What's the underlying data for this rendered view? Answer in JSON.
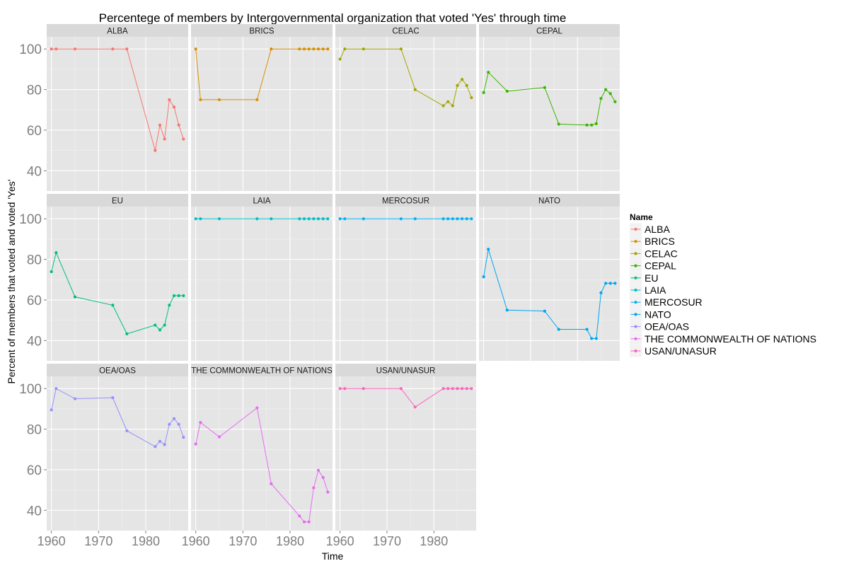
{
  "chart_data": {
    "type": "line",
    "title": "Percentege of members by Intergovernmental organization that voted 'Yes' through time",
    "xlabel": "Time",
    "ylabel": "Percent of members that voted and voted 'Yes'",
    "xlim": [
      1959,
      1989
    ],
    "ylim": [
      30,
      106
    ],
    "x_ticks": [
      1960,
      1970,
      1980
    ],
    "y_ticks": [
      40,
      60,
      80,
      100
    ],
    "grid": true,
    "legend": {
      "title": "Name",
      "position": "right"
    },
    "panels": [
      {
        "name": "ALBA",
        "color": "#F8766D",
        "x": [
          1960,
          1961,
          1965,
          1973,
          1976,
          1982,
          1983,
          1984,
          1985,
          1986,
          1987,
          1988
        ],
        "y": [
          100,
          100,
          100,
          100,
          100,
          50,
          62.5,
          55.6,
          75,
          71.4,
          62.5,
          55.6
        ]
      },
      {
        "name": "BRICS",
        "color": "#D89000",
        "x": [
          1960,
          1961,
          1965,
          1973,
          1976,
          1982,
          1983,
          1984,
          1985,
          1986,
          1987,
          1988
        ],
        "y": [
          100,
          75,
          75,
          75,
          100,
          100,
          100,
          100,
          100,
          100,
          100,
          100
        ]
      },
      {
        "name": "CELAC",
        "color": "#A3A500",
        "x": [
          1960,
          1961,
          1965,
          1973,
          1976,
          1982,
          1983,
          1984,
          1985,
          1986,
          1987,
          1988
        ],
        "y": [
          95,
          100,
          100,
          100,
          80,
          72,
          74,
          72,
          82,
          85,
          82,
          76
        ]
      },
      {
        "name": "CEPAL",
        "color": "#39B600",
        "x": [
          1960,
          1961,
          1965,
          1973,
          1976,
          1982,
          1983,
          1984,
          1985,
          1986,
          1987,
          1988
        ],
        "y": [
          78.5,
          88.5,
          79.2,
          81,
          63,
          62.5,
          62.5,
          63.2,
          75.6,
          80,
          78,
          74
        ]
      },
      {
        "name": "EU",
        "color": "#00BF7D",
        "x": [
          1960,
          1961,
          1965,
          1973,
          1976,
          1982,
          1983,
          1984,
          1985,
          1986,
          1987,
          1988
        ],
        "y": [
          73.9,
          83.3,
          61.5,
          57.4,
          43.3,
          47.6,
          45.2,
          47.6,
          57.4,
          62.1,
          62.1,
          62.1
        ]
      },
      {
        "name": "LAIA",
        "color": "#00BFC4",
        "x": [
          1960,
          1961,
          1965,
          1973,
          1976,
          1982,
          1983,
          1984,
          1985,
          1986,
          1987,
          1988
        ],
        "y": [
          100,
          100,
          100,
          100,
          100,
          100,
          100,
          100,
          100,
          100,
          100,
          100
        ]
      },
      {
        "name": "MERCOSUR",
        "color": "#00B0F6",
        "x": [
          1960,
          1961,
          1965,
          1973,
          1976,
          1982,
          1983,
          1984,
          1985,
          1986,
          1987,
          1988
        ],
        "y": [
          100,
          100,
          100,
          100,
          100,
          100,
          100,
          100,
          100,
          100,
          100,
          100
        ]
      },
      {
        "name": "NATO",
        "color": "#00A5F0",
        "x": [
          1960,
          1961,
          1965,
          1973,
          1976,
          1982,
          1983,
          1984,
          1985,
          1986,
          1987,
          1988
        ],
        "y": [
          71.4,
          85,
          55,
          54.5,
          45.5,
          45.5,
          41,
          41,
          63.5,
          68.2,
          68.2,
          68.2
        ]
      },
      {
        "name": "OEA/OAS",
        "color": "#9590FF",
        "x": [
          1960,
          1961,
          1965,
          1973,
          1976,
          1982,
          1983,
          1984,
          1985,
          1986,
          1987,
          1988
        ],
        "y": [
          89.5,
          100,
          95,
          95.5,
          79.2,
          71.4,
          74,
          72.4,
          82.4,
          85.2,
          82.4,
          76
        ]
      },
      {
        "name": "THE COMMONWEALTH OF NATIONS",
        "color": "#E76BF3",
        "x": [
          1960,
          1961,
          1965,
          1973,
          1976,
          1982,
          1983,
          1984,
          1985,
          1986,
          1987,
          1988
        ],
        "y": [
          72.7,
          83.3,
          76.2,
          90.5,
          53.1,
          37.2,
          34.3,
          34.3,
          51.1,
          59.7,
          56.2,
          49
        ]
      },
      {
        "name": "USAN/UNASUR",
        "color": "#FF62BC",
        "x": [
          1960,
          1961,
          1965,
          1973,
          1976,
          1982,
          1983,
          1984,
          1985,
          1986,
          1987,
          1988
        ],
        "y": [
          100,
          100,
          100,
          100,
          90.9,
          100,
          100,
          100,
          100,
          100,
          100,
          100
        ]
      }
    ]
  }
}
